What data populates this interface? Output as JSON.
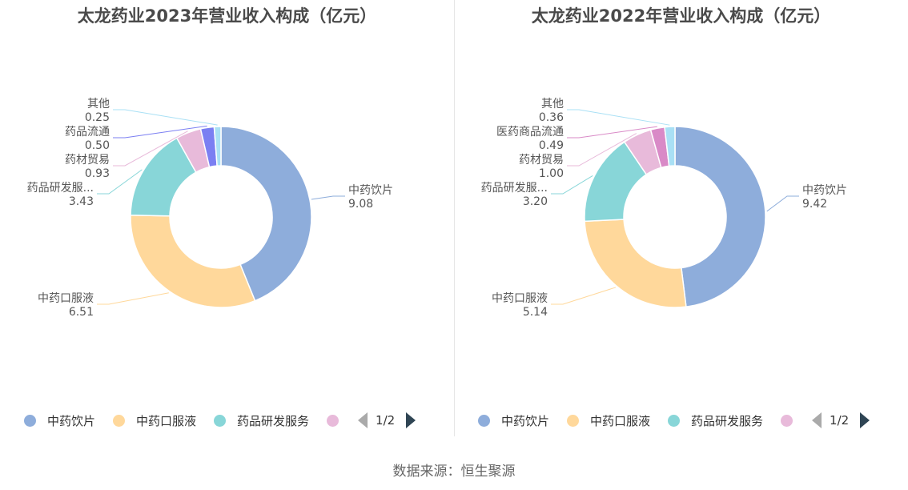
{
  "chart_data": [
    {
      "type": "pie",
      "title": "太龙药业2023年营业收入构成（亿元）",
      "categories": [
        "中药饮片",
        "中药口服液",
        "药品研发服务",
        "药材贸易",
        "药品流通",
        "其他"
      ],
      "label_names": [
        "中药饮片",
        "中药口服液",
        "药品研发服...",
        "药材贸易",
        "药品流通",
        "其他"
      ],
      "values": [
        9.08,
        6.51,
        3.43,
        0.93,
        0.5,
        0.25
      ],
      "value_labels": [
        "9.08",
        "6.51",
        "3.43",
        "0.93",
        "0.50",
        "0.25"
      ],
      "colors": [
        "#8eaddb",
        "#ffd89b",
        "#88d6d8",
        "#e8bada",
        "#7b7ff2",
        "#a9e0f5"
      ],
      "legend": {
        "visible_items": [
          "中药饮片",
          "中药口服液",
          "药品研发服务",
          ""
        ],
        "page": "1/2",
        "position": "bottom"
      }
    },
    {
      "type": "pie",
      "title": "太龙药业2022年营业收入构成（亿元）",
      "categories": [
        "中药饮片",
        "中药口服液",
        "药品研发服务",
        "药材贸易",
        "医药商品流通",
        "其他"
      ],
      "label_names": [
        "中药饮片",
        "中药口服液",
        "药品研发服...",
        "药材贸易",
        "医药商品流通",
        "其他"
      ],
      "values": [
        9.42,
        5.14,
        3.2,
        1.0,
        0.49,
        0.36
      ],
      "value_labels": [
        "9.42",
        "5.14",
        "3.20",
        "1.00",
        "0.49",
        "0.36"
      ],
      "colors": [
        "#8eaddb",
        "#ffd89b",
        "#88d6d8",
        "#e8bada",
        "#d98ac7",
        "#a9e0f5"
      ],
      "legend": {
        "visible_items": [
          "中药饮片",
          "中药口服液",
          "药品研发服务",
          ""
        ],
        "page": "1/2",
        "position": "bottom"
      }
    }
  ],
  "source": "数据来源：恒生聚源"
}
